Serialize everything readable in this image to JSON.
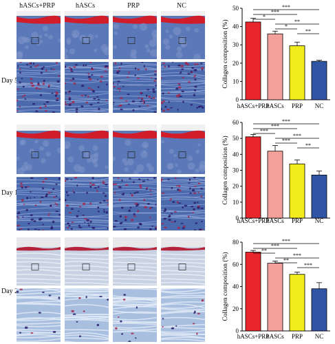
{
  "columns": [
    "hASCs+PRP",
    "hASCs",
    "PRP",
    "NC"
  ],
  "rows": [
    {
      "day": "Day 5"
    },
    {
      "day": "Day 11"
    },
    {
      "day": "Day 21"
    }
  ],
  "chart_data": [
    {
      "type": "bar",
      "categories": [
        "hASCs+PRP",
        "hASCs",
        "PRP",
        "NC"
      ],
      "values": [
        42.5,
        36,
        29.5,
        21
      ],
      "errors": [
        2,
        1.5,
        2,
        0.6
      ],
      "ylabel": "Collagen composition (%)",
      "ylim": [
        0,
        50
      ],
      "yticks": [
        "0",
        "10",
        "20",
        "30",
        "40",
        "50"
      ],
      "colors": [
        "#e8262b",
        "#f4a09b",
        "#f2ec1c",
        "#2f55a4"
      ],
      "sig": [
        "*",
        "***",
        "***",
        "*",
        "**",
        "**"
      ]
    },
    {
      "type": "bar",
      "categories": [
        "hASCs+PRP",
        "hASCs",
        "PRP",
        "NC"
      ],
      "values": [
        51,
        42,
        34,
        27
      ],
      "errors": [
        1.5,
        3.5,
        2.5,
        2.5
      ],
      "ylabel": "Collagen composition (%)",
      "ylim": [
        0,
        60
      ],
      "yticks": [
        "0",
        "10",
        "20",
        "30",
        "40",
        "50",
        "60"
      ],
      "colors": [
        "#e8262b",
        "#f4a09b",
        "#f2ec1c",
        "#2f55a4"
      ],
      "sig": [
        "***",
        "***",
        "***",
        "***",
        "***",
        "**"
      ]
    },
    {
      "type": "bar",
      "categories": [
        "hASCs+PRP",
        "hASCs",
        "PRP",
        "NC"
      ],
      "values": [
        71,
        61,
        51,
        38
      ],
      "errors": [
        1.5,
        2,
        2,
        5.5
      ],
      "ylabel": "Collagen composition (%)",
      "ylim": [
        0,
        80
      ],
      "yticks": [
        "0",
        "20",
        "40",
        "60",
        "80"
      ],
      "colors": [
        "#e8262b",
        "#f4a09b",
        "#f2ec1c",
        "#2f55a4"
      ],
      "sig": [
        "**",
        "***",
        "***",
        "**",
        "***",
        "***"
      ]
    }
  ]
}
